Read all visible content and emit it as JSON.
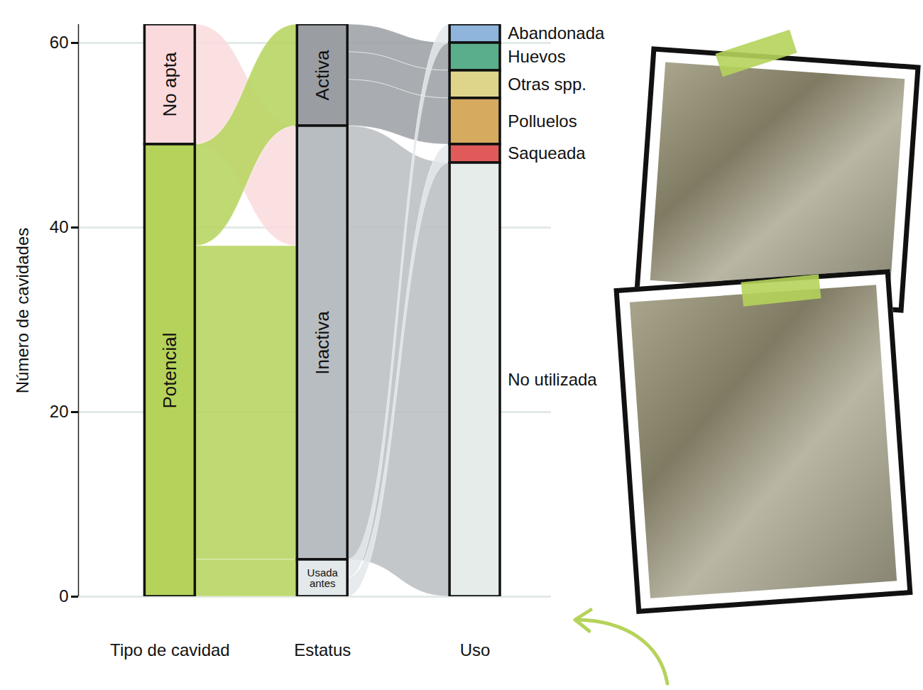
{
  "chart_data": {
    "type": "alluvial",
    "y_label": "Número de cavidades",
    "ylim": [
      0,
      62
    ],
    "yticks": [
      0,
      20,
      40,
      60
    ],
    "grid": true,
    "columns": [
      {
        "name": "Tipo de cavidad",
        "nodes": [
          {
            "name": "No apta",
            "value": 13,
            "color": "#fadadd"
          },
          {
            "name": "Potencial",
            "value": 49,
            "color": "#b5d35a"
          }
        ]
      },
      {
        "name": "Estatus",
        "nodes": [
          {
            "name": "Activa",
            "value": 11,
            "color": "#9a9ea3"
          },
          {
            "name": "Inactiva",
            "value": 47,
            "color": "#b8bdc1"
          },
          {
            "name": "Usada antes",
            "value": 4,
            "color": "#e3e8ea"
          }
        ]
      },
      {
        "name": "Uso",
        "nodes": [
          {
            "name": "Abandonada",
            "value": 2,
            "color": "#8fb5dc"
          },
          {
            "name": "Huevos",
            "value": 3,
            "color": "#5aae8c"
          },
          {
            "name": "Otras spp.",
            "value": 3,
            "color": "#dfd58a"
          },
          {
            "name": "Polluelos",
            "value": 5,
            "color": "#d6ab5f"
          },
          {
            "name": "Saqueada",
            "value": 2,
            "color": "#e05a5a"
          },
          {
            "name": "No utilizada",
            "value": 47,
            "color": "#e6ece9"
          }
        ]
      }
    ],
    "flows": [
      {
        "source": "No apta",
        "target": "Inactiva",
        "value": 13
      },
      {
        "source": "Potencial",
        "target": "Activa",
        "value": 11
      },
      {
        "source": "Potencial",
        "target": "Inactiva",
        "value": 34
      },
      {
        "source": "Potencial",
        "target": "Usada antes",
        "value": 4
      },
      {
        "source": "Activa",
        "target": "Huevos",
        "value": 3
      },
      {
        "source": "Activa",
        "target": "Otras spp.",
        "value": 3
      },
      {
        "source": "Activa",
        "target": "Polluelos",
        "value": 5
      },
      {
        "source": "Inactiva",
        "target": "No utilizada",
        "value": 47
      },
      {
        "source": "Usada antes",
        "target": "Abandonada",
        "value": 2
      },
      {
        "source": "Usada antes",
        "target": "Saqueada",
        "value": 2
      }
    ]
  }
}
